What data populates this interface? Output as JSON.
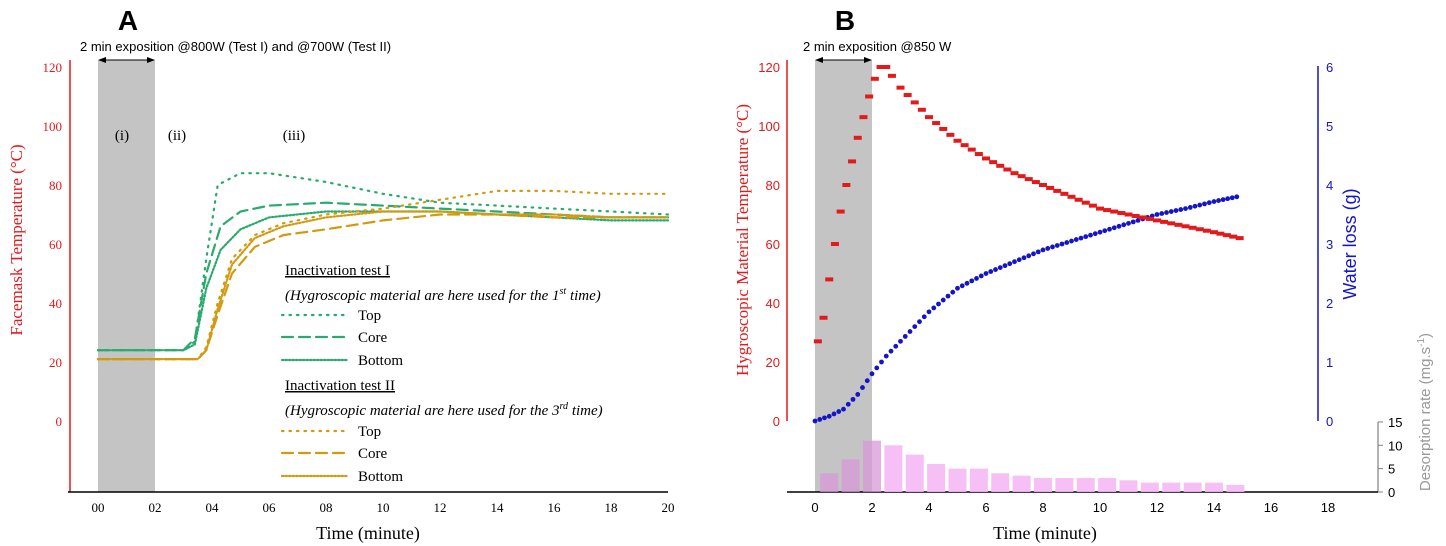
{
  "chart_data": [
    {
      "panel": "A",
      "type": "line",
      "annotation": "2 min exposition @800W (Test I) and @700W (Test II)",
      "phase_labels": [
        "(i)",
        "(ii)",
        "(iii)"
      ],
      "xlabel": "Time (minute)",
      "ylabel": "Facemask Temperature (°C)",
      "xlim": [
        -0.5,
        20
      ],
      "ylim": [
        -25,
        120
      ],
      "x_ticks": [
        "00",
        "02",
        "04",
        "06",
        "08",
        "10",
        "12",
        "14",
        "16",
        "18",
        "20"
      ],
      "y_ticks": [
        "0",
        "20",
        "40",
        "60",
        "80",
        "100",
        "120"
      ],
      "shaded_region": [
        0,
        2
      ],
      "legend": {
        "group1_title": "Inactivation test I",
        "group1_note": "(Hygroscopic material are here used for the 1",
        "group1_sup": "st",
        "group1_note_end": " time)",
        "group2_title": "Inactivation test II",
        "group2_note": "(Hygroscopic material are here used for the 3",
        "group2_sup": "rd",
        "group2_note_end": " time)"
      },
      "series": [
        {
          "name": "Top",
          "group": 1,
          "color": "#2aaa6e",
          "dash": "1.5,6",
          "x": [
            0,
            3,
            3.4,
            3.8,
            4.2,
            5,
            6,
            8,
            10,
            12,
            14,
            16,
            18,
            20
          ],
          "y": [
            24,
            24,
            27,
            55,
            80,
            84,
            84,
            81,
            77,
            74,
            73,
            72,
            71,
            70
          ]
        },
        {
          "name": "Core",
          "group": 1,
          "color": "#2aaa6e",
          "dash": "11,6",
          "x": [
            0,
            3,
            3.4,
            3.8,
            4.3,
            5,
            6,
            8,
            10,
            12,
            14,
            16,
            18,
            20
          ],
          "y": [
            24,
            24,
            28,
            50,
            66,
            71,
            73,
            74,
            73,
            72,
            71,
            70,
            69,
            69
          ]
        },
        {
          "name": "Bottom",
          "group": 1,
          "color": "#2aaa6e",
          "dash": "1.5,2",
          "x": [
            0,
            3,
            3.4,
            3.8,
            4.3,
            5,
            6,
            8,
            10,
            12,
            14,
            16,
            18,
            20
          ],
          "y": [
            24,
            24,
            26,
            45,
            58,
            65,
            69,
            71,
            71,
            71,
            70,
            69,
            68,
            68
          ]
        },
        {
          "name": "Top",
          "group": 2,
          "color": "#d29a10",
          "dash": "1.5,6",
          "x": [
            0,
            3.5,
            3.8,
            4.2,
            4.7,
            5.5,
            6.5,
            8,
            10,
            12,
            14,
            16,
            18,
            20
          ],
          "y": [
            21,
            21,
            25,
            40,
            55,
            63,
            67,
            70,
            72,
            75,
            78,
            78,
            77,
            77
          ]
        },
        {
          "name": "Core",
          "group": 2,
          "color": "#d29a10",
          "dash": "11,6",
          "x": [
            0,
            3.5,
            3.8,
            4.2,
            4.7,
            5.5,
            6.5,
            8,
            10,
            12,
            14,
            16,
            18,
            20
          ],
          "y": [
            21,
            21,
            24,
            36,
            50,
            59,
            63,
            65,
            68,
            70,
            70,
            69,
            69,
            69
          ]
        },
        {
          "name": "Bottom",
          "group": 2,
          "color": "#d29a10",
          "dash": "1.5,2",
          "x": [
            0,
            3.5,
            3.8,
            4.2,
            4.7,
            5.5,
            6.5,
            8,
            10,
            12,
            14,
            16,
            18,
            20
          ],
          "y": [
            21,
            21,
            24,
            38,
            53,
            62,
            66,
            69,
            71,
            71,
            70,
            70,
            69,
            69
          ]
        }
      ]
    },
    {
      "panel": "B",
      "type": "scatter",
      "annotation": "2 min exposition @850 W",
      "xlabel": "Time (minute)",
      "ylabel": "Hygroscopic Material Temperature (°C)",
      "y2label": "Water loss (g)",
      "y3label": "Desorption rate (mg.s",
      "y3label_sup": "-1",
      "y3label_end": ")",
      "xlim": [
        -0.5,
        18.5
      ],
      "ylim": [
        0,
        120
      ],
      "y2lim": [
        0,
        6
      ],
      "y3lim": [
        0,
        15
      ],
      "x_ticks": [
        "0",
        "2",
        "4",
        "6",
        "8",
        "10",
        "12",
        "14",
        "16",
        "18"
      ],
      "y_ticks": [
        "0",
        "20",
        "40",
        "60",
        "80",
        "100",
        "120"
      ],
      "y2_ticks": [
        "0",
        "1",
        "2",
        "3",
        "4",
        "5",
        "6"
      ],
      "y3_ticks": [
        "0",
        "5",
        "10",
        "15"
      ],
      "shaded_region": [
        0,
        2
      ],
      "series": [
        {
          "name": "Temperature",
          "axis": "left",
          "color": "#e31a1c",
          "x": [
            0.1,
            0.3,
            0.5,
            0.7,
            0.9,
            1.1,
            1.3,
            1.5,
            1.7,
            1.9,
            2.1,
            2.3,
            2.5,
            2.7,
            3.0,
            3.5,
            4,
            4.5,
            5,
            6,
            7,
            8,
            9,
            10,
            11,
            12,
            13,
            14,
            14.9
          ],
          "y": [
            27,
            35,
            48,
            60,
            71,
            80,
            88,
            96,
            103,
            110,
            116,
            120,
            120,
            117,
            113,
            108,
            103,
            99,
            95,
            89,
            84,
            80,
            76,
            72,
            70,
            68,
            66,
            64,
            62
          ]
        },
        {
          "name": "Water loss",
          "axis": "right",
          "color": "#1414c8",
          "x": [
            0,
            0.5,
            1,
            1.5,
            2,
            2.5,
            3,
            3.5,
            4,
            4.5,
            5,
            6,
            7,
            8,
            9,
            10,
            11,
            12,
            13,
            14,
            14.8
          ],
          "y": [
            0,
            0.08,
            0.2,
            0.45,
            0.8,
            1.1,
            1.35,
            1.6,
            1.85,
            2.05,
            2.25,
            2.5,
            2.7,
            2.9,
            3.05,
            3.2,
            3.35,
            3.5,
            3.6,
            3.72,
            3.8
          ]
        },
        {
          "name": "Desorption rate",
          "type": "bar",
          "axis": "right-bottom",
          "color": "#f5b8f5",
          "x": [
            0.5,
            1.25,
            2.0,
            2.75,
            3.5,
            4.25,
            5.0,
            5.75,
            6.5,
            7.25,
            8.0,
            8.75,
            9.5,
            10.25,
            11.0,
            11.75,
            12.5,
            13.25,
            14.0,
            14.75
          ],
          "values": [
            4,
            7,
            11,
            10,
            8,
            6,
            5,
            5,
            4,
            3.5,
            3,
            3,
            3,
            3,
            2.5,
            2,
            2,
            2,
            2,
            1.5
          ]
        }
      ]
    }
  ],
  "panel_labels": {
    "a": "A",
    "b": "B"
  }
}
